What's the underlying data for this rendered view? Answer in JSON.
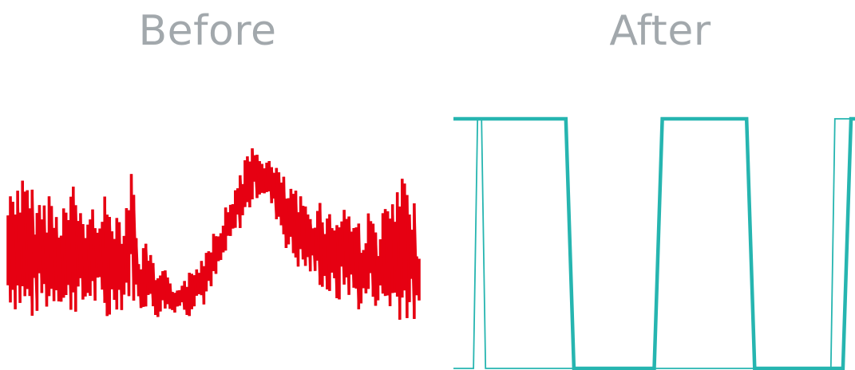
{
  "chart_data": [
    {
      "type": "line",
      "title": "Before",
      "color": "#e60012",
      "grid": false,
      "xlim": [
        0,
        1
      ],
      "ylim": [
        0,
        1
      ],
      "series": [
        {
          "x": [
            0.0,
            0.02,
            0.04,
            0.06,
            0.08,
            0.1,
            0.12,
            0.14,
            0.16,
            0.18,
            0.2,
            0.22,
            0.24,
            0.26,
            0.28,
            0.3,
            0.32,
            0.34,
            0.36,
            0.38,
            0.4,
            0.42,
            0.44,
            0.46,
            0.48,
            0.5,
            0.52,
            0.54,
            0.56,
            0.58,
            0.6,
            0.62,
            0.64,
            0.66,
            0.68,
            0.7,
            0.72,
            0.74,
            0.76,
            0.78,
            0.8,
            0.82,
            0.84,
            0.86,
            0.88,
            0.9,
            0.92,
            0.94,
            0.96,
            0.98,
            1.0
          ],
          "y_low": [
            0.2,
            0.15,
            0.12,
            0.1,
            0.18,
            0.14,
            0.22,
            0.11,
            0.16,
            0.13,
            0.2,
            0.14,
            0.06,
            0.18,
            0.15,
            0.24,
            0.15,
            0.19,
            0.12,
            0.17,
            0.15,
            0.18,
            0.13,
            0.22,
            0.18,
            0.26,
            0.38,
            0.48,
            0.56,
            0.62,
            0.72,
            0.74,
            0.68,
            0.58,
            0.45,
            0.38,
            0.35,
            0.33,
            0.28,
            0.22,
            0.18,
            0.25,
            0.2,
            0.14,
            0.22,
            0.17,
            0.15,
            0.13,
            0.12,
            0.1,
            0.08
          ],
          "y_high": [
            0.75,
            0.88,
            0.82,
            0.78,
            0.72,
            0.79,
            0.68,
            0.74,
            0.81,
            0.7,
            0.66,
            0.78,
            0.73,
            0.7,
            0.68,
            0.91,
            0.45,
            0.52,
            0.35,
            0.38,
            0.28,
            0.32,
            0.36,
            0.4,
            0.5,
            0.6,
            0.66,
            0.72,
            0.86,
            0.95,
            0.99,
            0.95,
            0.92,
            0.88,
            0.8,
            0.77,
            0.72,
            0.7,
            0.74,
            0.67,
            0.7,
            0.73,
            0.67,
            0.6,
            0.68,
            0.58,
            0.72,
            0.75,
            0.83,
            0.81,
            0.55
          ]
        }
      ]
    },
    {
      "type": "line",
      "title": "After",
      "color": "#26b5b0",
      "grid": false,
      "xlim": [
        0,
        1
      ],
      "ylim": [
        0,
        1
      ],
      "series": [
        {
          "x": [
            0.0,
            0.28,
            0.3,
            0.5,
            0.52,
            0.73,
            0.75,
            0.97,
            0.99,
            1.0
          ],
          "y": [
            1,
            1,
            0,
            0,
            1,
            1,
            0,
            0,
            1,
            1
          ]
        },
        {
          "x": [
            0.0,
            0.05,
            0.06,
            0.07,
            0.08,
            0.28,
            0.3,
            0.94,
            0.95,
            0.96,
            1.0
          ],
          "y": [
            0,
            0,
            1,
            1,
            0,
            0,
            0,
            0,
            1,
            1,
            1
          ]
        }
      ]
    }
  ]
}
